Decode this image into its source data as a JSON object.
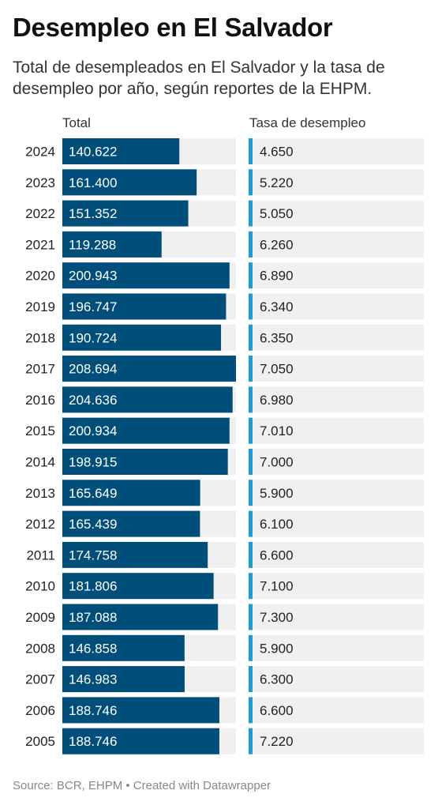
{
  "title": "Desempleo en El Salvador",
  "subtitle": "Total de desempleados en El Salvador y la tasa de desempleo por año, según reportes de la EHPM.",
  "source": "Source: BCR, EHPM • Created with Datawrapper",
  "colors": {
    "total_bar": "#004e7a",
    "rate_bar": "#1f9bcf",
    "track": "#f0f0f0"
  },
  "chart_data": {
    "type": "bar",
    "orientation": "horizontal",
    "categories": [
      "2024",
      "2023",
      "2022",
      "2021",
      "2020",
      "2019",
      "2018",
      "2017",
      "2016",
      "2015",
      "2014",
      "2013",
      "2012",
      "2011",
      "2010",
      "2009",
      "2008",
      "2007",
      "2006",
      "2005"
    ],
    "series": [
      {
        "name": "Total",
        "values": [
          140622,
          161400,
          151352,
          119288,
          200943,
          196747,
          190724,
          208694,
          204636,
          200934,
          198915,
          165649,
          165439,
          174758,
          181806,
          187088,
          146858,
          146983,
          188746,
          188746
        ],
        "labels": [
          "140.622",
          "161.400",
          "151.352",
          "119.288",
          "200.943",
          "196.747",
          "190.724",
          "208.694",
          "204.636",
          "200.934",
          "198.915",
          "165.649",
          "165.439",
          "174.758",
          "181.806",
          "187.088",
          "146.858",
          "146.983",
          "188.746",
          "188.746"
        ],
        "max": 208694
      },
      {
        "name": "Tasa de desempleo",
        "values": [
          4.65,
          5.22,
          5.05,
          6.26,
          6.89,
          6.34,
          6.35,
          7.05,
          6.98,
          7.01,
          7.0,
          5.9,
          6.1,
          6.6,
          7.1,
          7.3,
          5.9,
          6.3,
          6.6,
          7.22
        ],
        "labels": [
          "4.650",
          "5.220",
          "5.050",
          "6.260",
          "6.890",
          "6.340",
          "6.350",
          "7.050",
          "6.980",
          "7.010",
          "7.000",
          "5.900",
          "6.100",
          "6.600",
          "7.100",
          "7.300",
          "5.900",
          "6.300",
          "6.600",
          "7.220"
        ],
        "max": 7300
      }
    ]
  }
}
